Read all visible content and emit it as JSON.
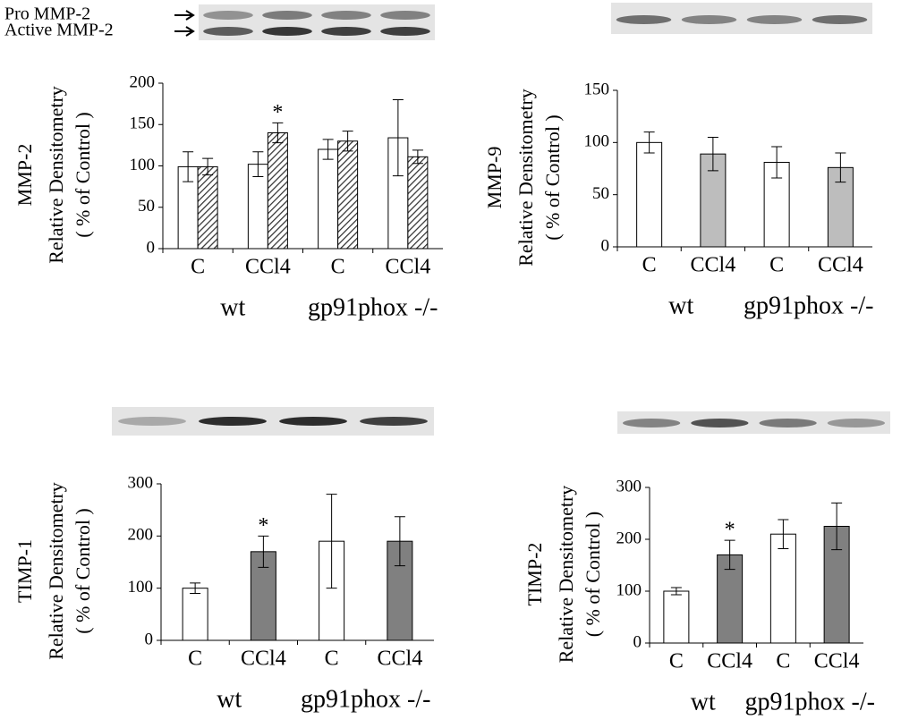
{
  "chart_data": [
    {
      "type": "bar",
      "ylabel": [
        "MMP-2",
        "Relative Densitometry",
        "( % of Control )"
      ],
      "blot_labels": [
        "Pro MMP-2",
        "Active MMP-2"
      ],
      "categories": [
        "C",
        "CCl4",
        "C",
        "CCl4"
      ],
      "groups": [
        "wt",
        "gp91phox -/-"
      ],
      "series": [
        {
          "color": "#ffffff",
          "values": [
            99,
            102,
            120,
            134
          ],
          "errors": [
            18,
            15,
            12,
            46
          ],
          "annotations": [
            null,
            null,
            null,
            null
          ]
        },
        {
          "color": "#555555",
          "pattern": "hatch",
          "values": [
            99,
            140,
            130,
            111
          ],
          "errors": [
            10,
            12,
            12,
            8
          ],
          "annotations": [
            null,
            "*",
            null,
            null
          ]
        }
      ],
      "ylim": [
        0,
        200
      ],
      "yticks": [
        0,
        50,
        100,
        150,
        200
      ]
    },
    {
      "type": "bar",
      "ylabel": [
        "MMP-9",
        "Relative Densitometry",
        "( % of Control )"
      ],
      "categories": [
        "C",
        "CCl4",
        "C",
        "CCl4"
      ],
      "groups": [
        "wt",
        "gp91phox -/-"
      ],
      "series": [
        {
          "colors": [
            "#ffffff",
            "#bdbdbd",
            "#ffffff",
            "#bdbdbd"
          ],
          "values": [
            100,
            89,
            81,
            76
          ],
          "errors": [
            10,
            16,
            15,
            14
          ],
          "annotations": [
            null,
            null,
            null,
            null
          ]
        }
      ],
      "ylim": [
        0,
        150
      ],
      "yticks": [
        0,
        50,
        100,
        150
      ]
    },
    {
      "type": "bar",
      "ylabel": [
        "TIMP-1",
        "Relative Densitometry",
        "( % of Control )"
      ],
      "categories": [
        "C",
        "CCl4",
        "C",
        "CCl4"
      ],
      "groups": [
        "wt",
        "gp91phox -/-"
      ],
      "series": [
        {
          "colors": [
            "#ffffff",
            "#808080",
            "#ffffff",
            "#808080"
          ],
          "values": [
            100,
            170,
            190,
            190
          ],
          "errors": [
            10,
            30,
            90,
            47
          ],
          "annotations": [
            null,
            "*",
            null,
            null
          ]
        }
      ],
      "ylim": [
        0,
        300
      ],
      "yticks": [
        0,
        100,
        200,
        300
      ]
    },
    {
      "type": "bar",
      "ylabel": [
        "TIMP-2",
        "Relative Densitometry",
        "( % of Control )"
      ],
      "categories": [
        "C",
        "CCl4",
        "C",
        "CCl4"
      ],
      "groups": [
        "wt",
        "gp91phox -/-"
      ],
      "series": [
        {
          "colors": [
            "#ffffff",
            "#808080",
            "#ffffff",
            "#808080"
          ],
          "values": [
            100,
            170,
            210,
            225
          ],
          "errors": [
            7,
            28,
            28,
            45
          ],
          "annotations": [
            null,
            "*",
            null,
            null
          ]
        }
      ],
      "ylim": [
        0,
        300
      ],
      "yticks": [
        0,
        100,
        200,
        300
      ]
    }
  ]
}
